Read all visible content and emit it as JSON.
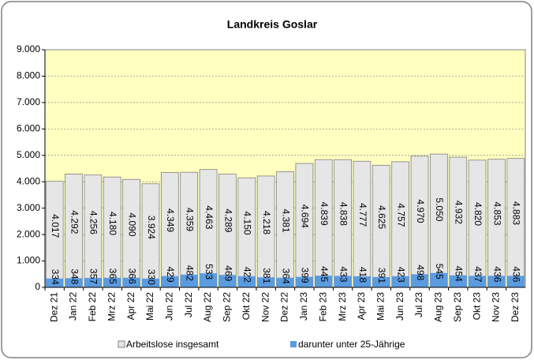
{
  "chart_data": {
    "type": "bar",
    "title": "Landkreis Goslar",
    "categories": [
      "Dez 21",
      "Jan 22",
      "Feb 22",
      "Mrz 22",
      "Apr 22",
      "Mai 22",
      "Jun 22",
      "Jul 22",
      "Aug 22",
      "Sep 22",
      "Okt 22",
      "Nov 22",
      "Dez 22",
      "Jan 23",
      "Feb 23",
      "Mrz 23",
      "Apr 23",
      "Mai 23",
      "Jun 23",
      "Jul 23",
      "Aug 23",
      "Sep 23",
      "Okt 23",
      "Nov 23",
      "Dez 23"
    ],
    "series": [
      {
        "name": "Arbeitslose insgesamt",
        "color": "#e6e6e6",
        "values": [
          4017,
          4292,
          4256,
          4180,
          4090,
          3924,
          4349,
          4359,
          4463,
          4289,
          4150,
          4218,
          4381,
          4694,
          4839,
          4838,
          4777,
          4625,
          4757,
          4970,
          5050,
          4932,
          4820,
          4853,
          4883
        ],
        "value_labels": [
          "4.017",
          "4.292",
          "4.256",
          "4.180",
          "4.090",
          "3.924",
          "4.349",
          "4.359",
          "4.463",
          "4.289",
          "4.150",
          "4.218",
          "4.381",
          "4.694",
          "4.839",
          "4.838",
          "4.777",
          "4.625",
          "4.757",
          "4.970",
          "5.050",
          "4.932",
          "4.820",
          "4.853",
          "4.883"
        ]
      },
      {
        "name": "darunter unter 25-Jährige",
        "color": "#5b9be0",
        "values": [
          334,
          348,
          357,
          365,
          366,
          330,
          429,
          482,
          533,
          469,
          422,
          381,
          364,
          399,
          445,
          433,
          418,
          391,
          423,
          498,
          545,
          454,
          437,
          436,
          436
        ]
      }
    ],
    "ylim": [
      0,
      9000
    ],
    "yticks": [
      0,
      {
        "value": 1000,
        "label": "1.000"
      },
      {
        "value": 2000,
        "label": "2.000"
      },
      {
        "value": 3000,
        "label": "3.000"
      },
      {
        "value": 4000,
        "label": "4.000"
      },
      {
        "value": 5000,
        "label": "5.000"
      },
      {
        "value": 6000,
        "label": "6.000"
      },
      {
        "value": 7000,
        "label": "7.000"
      },
      {
        "value": 8000,
        "label": "8.000"
      },
      {
        "value": 9000,
        "label": "9.000"
      }
    ],
    "grid": true,
    "plot_background": "#ffffc0",
    "legend": "bottom"
  }
}
